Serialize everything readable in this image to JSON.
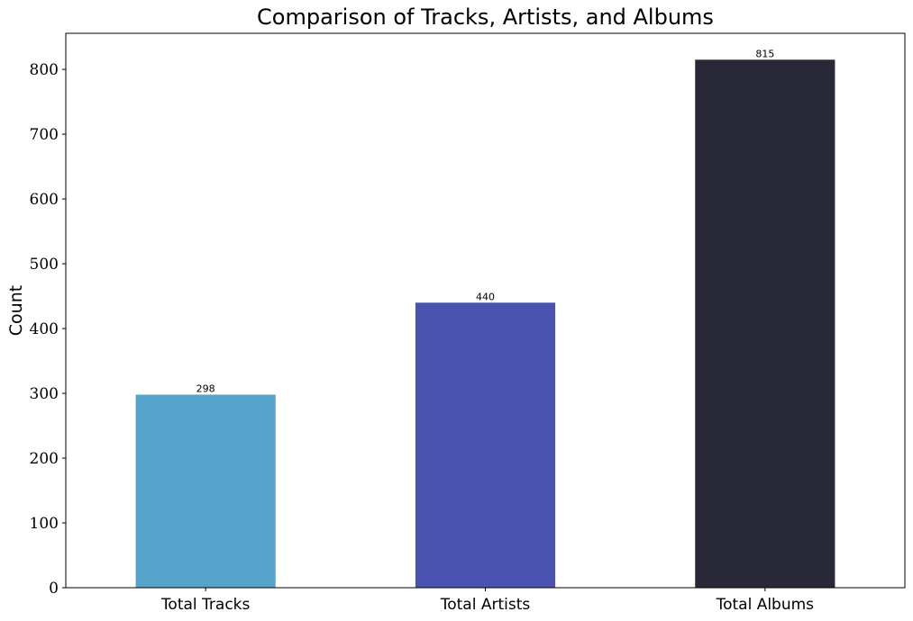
{
  "chart_data": {
    "type": "bar",
    "title": "Comparison of Tracks, Artists, and Albums",
    "xlabel": "",
    "ylabel": "Count",
    "categories": [
      "Total Tracks",
      "Total Artists",
      "Total Albums"
    ],
    "values": [
      298,
      440,
      815
    ],
    "data_labels": [
      "298",
      "440",
      "815"
    ],
    "colors": [
      "#56a3cc",
      "#4a54b0",
      "#282839"
    ],
    "ylim": [
      0,
      855.75
    ],
    "yticks": [
      0,
      100,
      200,
      300,
      400,
      500,
      600,
      700,
      800
    ],
    "ytick_labels": [
      "0",
      "100",
      "200",
      "300",
      "400",
      "500",
      "600",
      "700",
      "800"
    ],
    "grid": false,
    "legend": "none"
  }
}
